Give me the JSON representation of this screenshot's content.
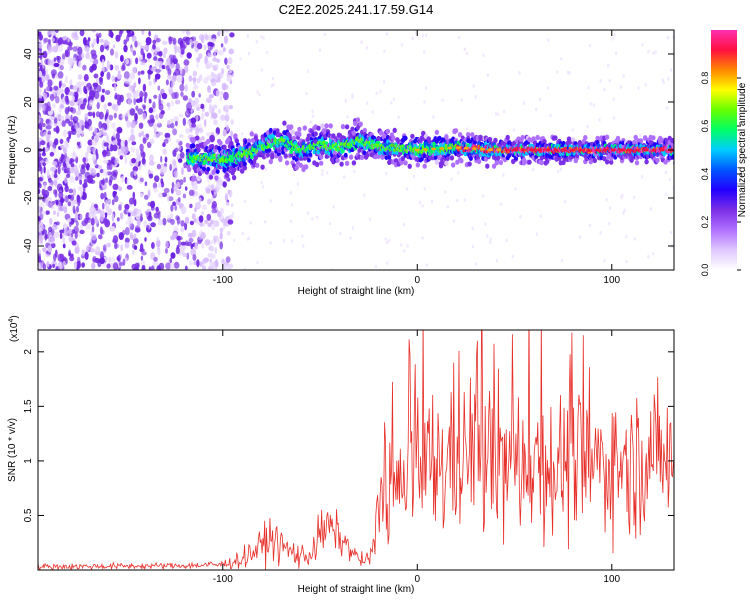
{
  "title": "C2E2.2025.241.17.59.G14",
  "chart_data": [
    {
      "type": "heatmap",
      "xlabel": "Height of straight line (km)",
      "ylabel": "Frequency (Hz)",
      "xlim": [
        -195,
        132
      ],
      "ylim": [
        -50,
        50
      ],
      "xticks": [
        -100,
        0,
        100
      ],
      "yticks": [
        -40,
        -20,
        0,
        20,
        40
      ],
      "colorbar": {
        "label": "Normalized spectral amplitude",
        "range": [
          0,
          1
        ],
        "ticks": [
          0.0,
          0.2,
          0.4,
          0.6,
          0.8
        ],
        "colors": [
          "#ffffff",
          "#e0c8ff",
          "#b070ff",
          "#7b2fe6",
          "#2200ff",
          "#0055ff",
          "#00ccff",
          "#00ff66",
          "#66ff00",
          "#ffff00",
          "#ff8800",
          "#ff1040",
          "#ff30b0"
        ]
      },
      "ridge": {
        "x": [
          -118,
          -110,
          -100,
          -90,
          -80,
          -75,
          -70,
          -60,
          -50,
          -40,
          -30,
          -20,
          -10,
          0,
          20,
          40,
          60,
          80,
          100,
          120,
          132
        ],
        "y": [
          -4,
          -3,
          -4,
          -2,
          1,
          3,
          4,
          0,
          2,
          1,
          4,
          1,
          1,
          0,
          1,
          0,
          0,
          0,
          0,
          0,
          0
        ]
      },
      "noise_region_x": [
        -195,
        -95
      ]
    },
    {
      "type": "line",
      "xlabel": "Height of straight line (km)",
      "ylabel": "SNR (10 * v/v)",
      "scale_label": "(x10",
      "scale_exponent": "4",
      "scale_close": ")",
      "xlim": [
        -195,
        132
      ],
      "ylim": [
        0,
        2.2
      ],
      "xticks": [
        -100,
        0,
        100
      ],
      "yticks": [
        0.5,
        1.0,
        1.5,
        2.0
      ],
      "series": [
        {
          "name": "SNR",
          "color": "#e8302a",
          "envelope_x": [
            -195,
            -120,
            -100,
            -90,
            -80,
            -75,
            -70,
            -60,
            -55,
            -50,
            -45,
            -40,
            -35,
            -30,
            -25,
            -22,
            -20,
            -15,
            -10,
            0,
            10,
            20,
            30,
            40,
            50,
            60,
            70,
            80,
            90,
            100,
            110,
            120,
            132
          ],
          "envelope_mean": [
            0.03,
            0.04,
            0.05,
            0.1,
            0.22,
            0.3,
            0.22,
            0.12,
            0.15,
            0.32,
            0.4,
            0.3,
            0.2,
            0.1,
            0.08,
            0.2,
            0.6,
            0.75,
            0.7,
            0.9,
            0.95,
            1.05,
            1.1,
            1.0,
            0.95,
            1.05,
            0.95,
            1.0,
            0.95,
            1.0,
            0.95,
            1.05,
            1.05
          ],
          "envelope_spread": [
            0.02,
            0.02,
            0.03,
            0.06,
            0.12,
            0.14,
            0.12,
            0.08,
            0.1,
            0.15,
            0.15,
            0.12,
            0.08,
            0.05,
            0.05,
            0.2,
            0.35,
            0.4,
            0.45,
            0.5,
            0.5,
            0.55,
            0.55,
            0.55,
            0.5,
            0.5,
            0.5,
            0.5,
            0.45,
            0.45,
            0.45,
            0.45,
            0.45
          ]
        }
      ]
    }
  ]
}
